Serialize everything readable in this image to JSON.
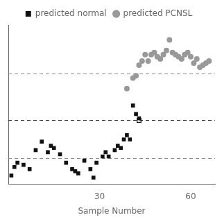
{
  "chart_data": {
    "type": "scatter",
    "xlabel": "Sample Number",
    "xlim": [
      0,
      68
    ],
    "xticks": [
      30,
      60
    ],
    "ylim": [
      -3.0,
      4.5
    ],
    "grid": false,
    "tick_labels": "x",
    "legend": "top",
    "hlines": [
      {
        "y": 2.2,
        "color": "#888888",
        "line_style": "dashed"
      },
      {
        "y": 0.0,
        "color": "#333333",
        "line_style": "dashed"
      },
      {
        "y": -1.8,
        "color": "#888888",
        "line_style": "dashed"
      }
    ],
    "series": [
      {
        "name": "predicted normal",
        "color": "#111111",
        "marker": "square",
        "x": [
          1,
          2,
          3,
          5,
          7,
          9,
          11,
          13,
          14,
          15,
          17,
          19,
          21,
          22,
          23,
          25,
          27,
          28,
          29,
          31,
          32,
          33,
          35,
          36,
          37,
          38,
          39,
          40,
          41,
          42,
          43
        ],
        "values": [
          -2.6,
          -2.2,
          -2.0,
          -2.1,
          -2.3,
          -1.4,
          -1.0,
          -1.5,
          -1.2,
          -1.3,
          -1.6,
          -2.0,
          -2.3,
          -2.4,
          -2.5,
          -1.9,
          -2.3,
          -2.7,
          -2.0,
          -1.7,
          -1.5,
          -1.7,
          -1.4,
          -1.2,
          -1.3,
          -0.9,
          -0.7,
          -0.9,
          0.7,
          0.3,
          0.1
        ]
      },
      {
        "color": "#111111",
        "marker": "open_square",
        "x": [
          43
        ],
        "values": [
          0.0
        ]
      },
      {
        "name": "predicted PCNSL",
        "color": "#999999",
        "marker": "circle",
        "x": [
          39,
          41,
          42,
          43,
          44,
          45,
          46,
          47,
          48,
          49,
          50,
          51,
          52,
          53,
          54,
          55,
          56,
          57,
          58,
          59,
          60,
          61,
          62,
          63,
          64,
          65,
          66
        ],
        "values": [
          1.5,
          2.0,
          2.1,
          2.6,
          2.8,
          3.1,
          2.8,
          3.1,
          3.2,
          3.0,
          2.9,
          3.1,
          3.3,
          3.8,
          3.2,
          3.1,
          3.0,
          2.9,
          3.1,
          3.2,
          3.0,
          2.7,
          2.9,
          2.5,
          2.6,
          2.7,
          2.8
        ]
      }
    ]
  }
}
